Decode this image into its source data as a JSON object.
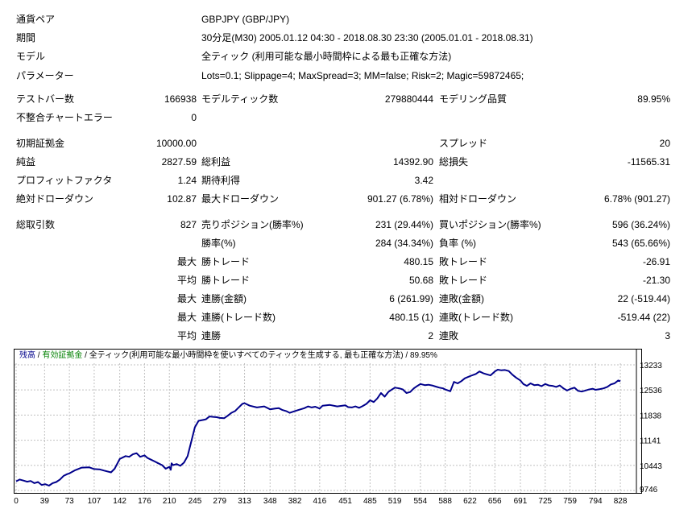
{
  "rows": {
    "symbol": {
      "label": "通貨ペア",
      "value": "GBPJPY (GBP/JPY)"
    },
    "period": {
      "label": "期間",
      "value": "30分足(M30) 2005.01.12 04:30 - 2018.08.30 23:30 (2005.01.01 - 2018.08.31)"
    },
    "model": {
      "label": "モデル",
      "value": "全ティック (利用可能な最小時間枠による最も正確な方法)"
    },
    "params": {
      "label": "パラメーター",
      "value": "Lots=0.1; Slippage=4; MaxSpread=3; MM=false; Risk=2; Magic=59872465;"
    }
  },
  "stats": {
    "bars": {
      "label": "テストバー数",
      "value": "166938"
    },
    "ticks": {
      "label": "モデルティック数",
      "value": "279880444"
    },
    "quality": {
      "label": "モデリング品質",
      "value": "89.95%"
    },
    "mismatch": {
      "label": "不整合チャートエラー",
      "value": "0"
    },
    "deposit": {
      "label": "初期証拠金",
      "value": "10000.00"
    },
    "spread": {
      "label": "スプレッド",
      "value": "20"
    },
    "net": {
      "label": "純益",
      "value": "2827.59"
    },
    "gross_profit": {
      "label": "総利益",
      "value": "14392.90"
    },
    "gross_loss": {
      "label": "総損失",
      "value": "-11565.31"
    },
    "pf": {
      "label": "プロフィットファクタ",
      "value": "1.24"
    },
    "expected": {
      "label": "期待利得",
      "value": "3.42"
    },
    "abs_dd": {
      "label": "絶対ドローダウン",
      "value": "102.87"
    },
    "max_dd": {
      "label": "最大ドローダウン",
      "value": "901.27 (6.78%)"
    },
    "rel_dd": {
      "label": "相対ドローダウン",
      "value": "6.78% (901.27)"
    },
    "total_trades": {
      "label": "総取引数",
      "value": "827"
    },
    "short": {
      "label": "売りポジション(勝率%)",
      "value": "231 (29.44%)"
    },
    "long": {
      "label": "買いポジション(勝率%)",
      "value": "596 (36.24%)"
    },
    "win_rate": {
      "label": "勝率(%)",
      "value": "284 (34.34%)"
    },
    "loss_rate": {
      "label": "負率 (%)",
      "value": "543 (65.66%)"
    },
    "largest_win": {
      "prefix": "最大",
      "label": "勝トレード",
      "value": "480.15"
    },
    "largest_loss": {
      "label": "敗トレード",
      "value": "-26.91"
    },
    "avg_win": {
      "prefix": "平均",
      "label": "勝トレード",
      "value": "50.68"
    },
    "avg_loss": {
      "label": "敗トレード",
      "value": "-21.30"
    },
    "max_cons_wins_money": {
      "prefix": "最大",
      "label": "連勝(金額)",
      "value": "6 (261.99)"
    },
    "max_cons_losses_money": {
      "label": "連敗(金額)",
      "value": "22 (-519.44)"
    },
    "max_cons_wins_count": {
      "prefix": "最大",
      "label": "連勝(トレード数)",
      "value": "480.15 (1)"
    },
    "max_cons_losses_count": {
      "label": "連敗(トレード数)",
      "value": "-519.44 (22)"
    },
    "avg_cons_wins": {
      "prefix": "平均",
      "label": "連勝",
      "value": "2"
    },
    "avg_cons_losses": {
      "label": "連敗",
      "value": "3"
    }
  },
  "chart_legend": {
    "balance": "残高",
    "sep1": " / ",
    "equity": "有効証拠金",
    "sep2": " / ",
    "model": "全ティック(利用可能な最小時間枠を使いすべてのティックを生成する, 最も正確な方法)",
    "sep3": " / ",
    "quality": "89.95%"
  },
  "colors": {
    "line": "#00008b",
    "balance_label": "#00008b",
    "equity_label": "#008000",
    "grid": "#c0c0c0"
  },
  "chart_data": {
    "type": "line",
    "y_ticks": [
      "13233",
      "12536",
      "11838",
      "11141",
      "10443",
      "9746"
    ],
    "y_tick_values": [
      13233,
      12536,
      11838,
      11141,
      10443,
      9746
    ],
    "ylim": [
      9746,
      13233
    ],
    "x_ticks": [
      "0",
      "39",
      "73",
      "107",
      "142",
      "176",
      "210",
      "245",
      "279",
      "313",
      "348",
      "382",
      "416",
      "451",
      "485",
      "519",
      "554",
      "588",
      "622",
      "656",
      "691",
      "725",
      "759",
      "794",
      "828"
    ],
    "xlim": [
      0,
      850
    ],
    "series": [
      {
        "x": [
          0,
          5,
          10,
          15,
          20,
          25,
          30,
          35,
          40,
          45,
          50,
          55,
          60,
          65,
          70,
          73,
          80,
          90,
          100,
          107,
          115,
          120,
          130,
          135,
          142,
          150,
          155,
          160,
          165,
          170,
          176,
          180,
          185,
          190,
          195,
          200,
          205,
          210,
          212,
          213,
          215,
          220,
          225,
          230,
          235,
          240,
          245,
          250,
          255,
          260,
          265,
          270,
          275,
          279,
          285,
          290,
          295,
          300,
          305,
          310,
          313,
          320,
          330,
          340,
          348,
          355,
          360,
          365,
          370,
          375,
          382,
          390,
          395,
          400,
          405,
          410,
          416,
          420,
          430,
          440,
          451,
          455,
          460,
          465,
          470,
          475,
          480,
          485,
          490,
          495,
          500,
          505,
          510,
          515,
          519,
          525,
          530,
          535,
          540,
          545,
          550,
          554,
          560,
          565,
          570,
          575,
          580,
          585,
          588,
          595,
          600,
          605,
          610,
          615,
          622,
          630,
          635,
          640,
          645,
          650,
          656,
          660,
          665,
          670,
          675,
          680,
          685,
          691,
          695,
          700,
          705,
          710,
          715,
          720,
          725,
          730,
          735,
          740,
          745,
          750,
          755,
          759,
          765,
          770,
          775,
          780,
          785,
          790,
          794,
          800,
          805,
          810,
          815,
          820,
          825,
          828
        ],
        "y": [
          10000,
          10050,
          10020,
          9990,
          10010,
          9950,
          9980,
          9900,
          9920,
          9880,
          9950,
          9980,
          10050,
          10150,
          10200,
          10220,
          10300,
          10380,
          10390,
          10340,
          10330,
          10300,
          10250,
          10350,
          10620,
          10700,
          10680,
          10750,
          10780,
          10680,
          10720,
          10650,
          10600,
          10550,
          10500,
          10450,
          10350,
          10400,
          10320,
          10500,
          10450,
          10480,
          10430,
          10520,
          10700,
          11100,
          11500,
          11680,
          11700,
          11720,
          11800,
          11790,
          11780,
          11760,
          11750,
          11820,
          11900,
          11950,
          12050,
          12150,
          12170,
          12100,
          12050,
          12080,
          12000,
          12020,
          12030,
          11980,
          11950,
          11900,
          11950,
          12000,
          12030,
          12080,
          12050,
          12070,
          12020,
          12100,
          12120,
          12080,
          12110,
          12060,
          12050,
          12080,
          12040,
          12090,
          12150,
          12250,
          12200,
          12300,
          12450,
          12350,
          12480,
          12550,
          12600,
          12580,
          12550,
          12450,
          12480,
          12580,
          12650,
          12700,
          12670,
          12680,
          12660,
          12630,
          12600,
          12580,
          12550,
          12500,
          12760,
          12720,
          12780,
          12860,
          12920,
          12980,
          13050,
          13000,
          12970,
          12940,
          13050,
          13100,
          13080,
          13090,
          13060,
          12960,
          12880,
          12800,
          12700,
          12650,
          12720,
          12670,
          12680,
          12640,
          12700,
          12660,
          12650,
          12620,
          12660,
          12580,
          12520,
          12560,
          12600,
          12510,
          12490,
          12520,
          12550,
          12570,
          12540,
          12560,
          12580,
          12620,
          12690,
          12720,
          12800,
          12780
        ]
      }
    ]
  }
}
